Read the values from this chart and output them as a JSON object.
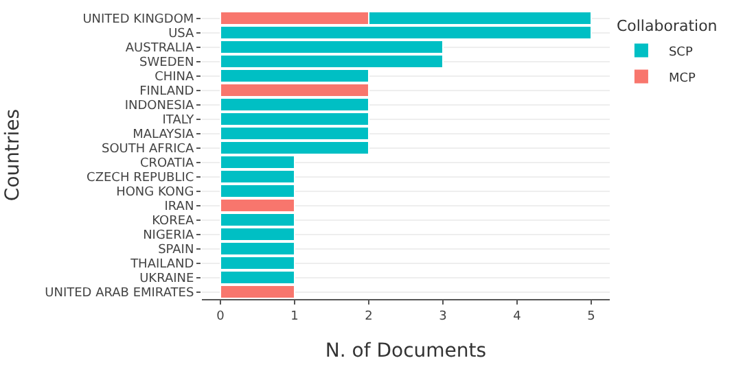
{
  "chart_data": {
    "type": "bar",
    "orientation": "horizontal",
    "stacked": true,
    "xlabel": "N. of Documents",
    "ylabel": "Countries",
    "legend_title": "Collaboration",
    "categories": [
      "UNITED KINGDOM",
      "USA",
      "AUSTRALIA",
      "SWEDEN",
      "CHINA",
      "FINLAND",
      "INDONESIA",
      "ITALY",
      "MALAYSIA",
      "SOUTH AFRICA",
      "CROATIA",
      "CZECH REPUBLIC",
      "HONG KONG",
      "IRAN",
      "KOREA",
      "NIGERIA",
      "SPAIN",
      "THAILAND",
      "UKRAINE",
      "UNITED ARAB EMIRATES"
    ],
    "series": [
      {
        "name": "MCP",
        "color": "#f8766d",
        "values": [
          2,
          null,
          null,
          null,
          null,
          2,
          null,
          null,
          null,
          null,
          null,
          null,
          null,
          1,
          null,
          null,
          null,
          null,
          null,
          1
        ]
      },
      {
        "name": "SCP",
        "color": "#00bfc4",
        "values": [
          3,
          5,
          3,
          3,
          2,
          null,
          2,
          2,
          2,
          2,
          1,
          1,
          1,
          null,
          1,
          1,
          1,
          1,
          1,
          null
        ]
      }
    ],
    "xlim": [
      -0.25,
      5.25
    ],
    "xticks": [
      0,
      1,
      2,
      3,
      4,
      5
    ],
    "grid": "y",
    "legend": "top right"
  }
}
